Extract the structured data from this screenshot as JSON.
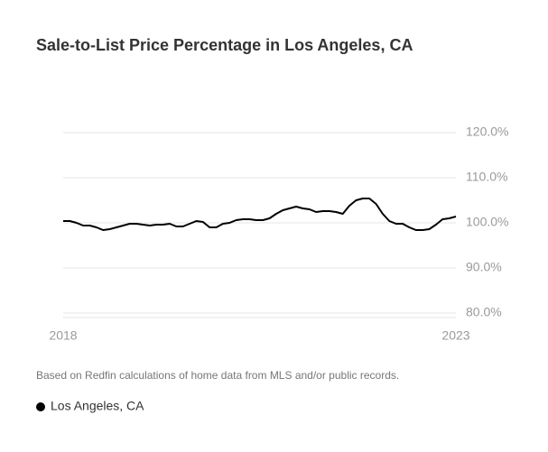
{
  "chart_data": {
    "type": "line",
    "title": "Sale-to-List Price Percentage in Los Angeles, CA",
    "note": "Based on Redfin calculations of home data from MLS and/or public records.",
    "categories": [
      "2018",
      null,
      null,
      null,
      null,
      null,
      null,
      null,
      null,
      null,
      null,
      null,
      null,
      null,
      null,
      null,
      null,
      null,
      null,
      null,
      null,
      null,
      null,
      null,
      null,
      null,
      null,
      null,
      null,
      null,
      null,
      null,
      null,
      null,
      null,
      null,
      null,
      null,
      null,
      null,
      null,
      null,
      null,
      null,
      null,
      null,
      null,
      null,
      null,
      null,
      null,
      null,
      null,
      null,
      null,
      null,
      null,
      null,
      null,
      "2023"
    ],
    "series": [
      {
        "name": "Los Angeles, CA",
        "color": "#000000",
        "values": [
          100.4,
          100.4,
          100,
          99.4,
          99.4,
          99,
          98.4,
          98.6,
          99,
          99.4,
          99.8,
          99.8,
          99.6,
          99.4,
          99.6,
          99.6,
          99.8,
          99.2,
          99.2,
          99.8,
          100.4,
          100.2,
          99,
          99,
          99.8,
          100,
          100.6,
          100.8,
          100.8,
          100.6,
          100.6,
          101,
          102,
          102.8,
          103.2,
          103.6,
          103.2,
          103,
          102.4,
          102.6,
          102.6,
          102.4,
          102,
          103.8,
          105,
          105.4,
          105.4,
          104.2,
          102,
          100.4,
          99.8,
          99.8,
          99,
          98.4,
          98.4,
          98.6,
          99.6,
          100.8,
          101,
          101.4
        ]
      }
    ],
    "ylim": [
      80,
      120
    ],
    "yticks": [
      {
        "value": 80,
        "label": "80.0%"
      },
      {
        "value": 90,
        "label": "90.0%"
      },
      {
        "value": 100,
        "label": "100.0%"
      },
      {
        "value": 110,
        "label": "110.0%"
      },
      {
        "value": 120,
        "label": "120.0%"
      }
    ],
    "grid": true
  }
}
